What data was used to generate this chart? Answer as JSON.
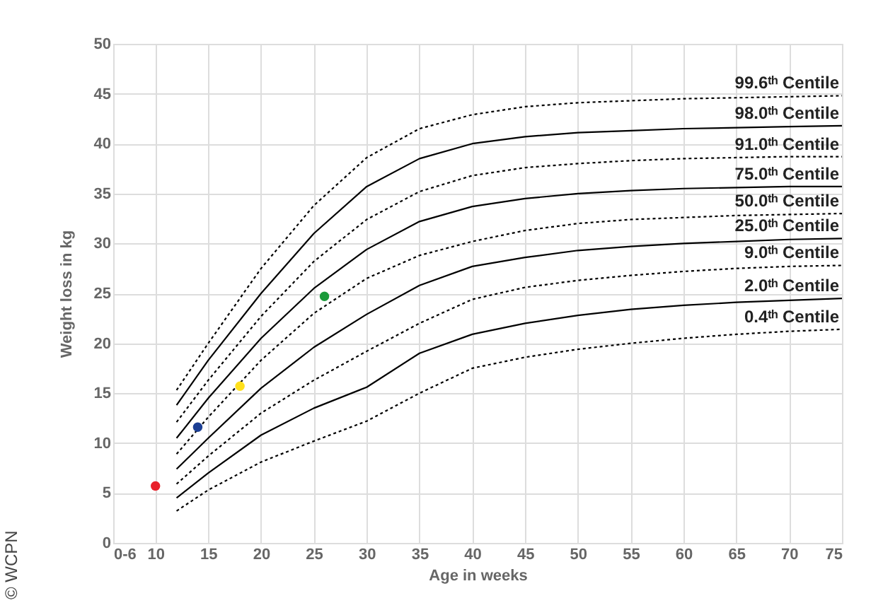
{
  "chart_data": {
    "type": "line",
    "xlabel": "Age in weeks",
    "ylabel": "Weight loss in kg",
    "xlim": [
      6,
      75
    ],
    "xticks": [
      {
        "value": 6,
        "label": "0-6"
      },
      10,
      15,
      20,
      25,
      30,
      35,
      40,
      45,
      50,
      55,
      60,
      65,
      70,
      75
    ],
    "ylim": [
      0,
      50
    ],
    "yticks": [
      0,
      5,
      10,
      15,
      20,
      25,
      30,
      35,
      40,
      45,
      50
    ],
    "grid": true,
    "legend": false,
    "x": [
      12,
      15,
      20,
      25,
      30,
      35,
      40,
      45,
      50,
      55,
      60,
      65,
      70,
      75
    ],
    "series": [
      {
        "name": "99.6ᵗʰ Centile",
        "color": "#000000",
        "line_style": "dotted",
        "values": [
          15.3,
          20.0,
          27.5,
          33.8,
          38.6,
          41.5,
          42.9,
          43.7,
          44.1,
          44.3,
          44.5,
          44.6,
          44.7,
          44.8
        ]
      },
      {
        "name": "98.0ᵗʰ Centile",
        "color": "#000000",
        "line_style": "solid",
        "values": [
          13.8,
          18.3,
          25.0,
          31.0,
          35.7,
          38.5,
          40.0,
          40.7,
          41.1,
          41.3,
          41.5,
          41.6,
          41.7,
          41.8
        ]
      },
      {
        "name": "91.0ᵗʰ Centile",
        "color": "#000000",
        "line_style": "dotted",
        "values": [
          12.1,
          16.3,
          22.7,
          28.2,
          32.4,
          35.2,
          36.8,
          37.6,
          38.0,
          38.3,
          38.5,
          38.6,
          38.7,
          38.7
        ]
      },
      {
        "name": "75.0ᵗʰ Centile",
        "color": "#000000",
        "line_style": "solid",
        "values": [
          10.5,
          14.5,
          20.5,
          25.5,
          29.4,
          32.2,
          33.7,
          34.5,
          35.0,
          35.3,
          35.5,
          35.6,
          35.7,
          35.7
        ]
      },
      {
        "name": "50.0ᵗʰ Centile",
        "color": "#000000",
        "line_style": "dotted",
        "values": [
          8.9,
          12.6,
          18.3,
          23.0,
          26.5,
          28.8,
          30.2,
          31.3,
          32.0,
          32.4,
          32.6,
          32.8,
          32.9,
          33.0
        ]
      },
      {
        "name": "25.0ᵗʰ Centile",
        "color": "#000000",
        "line_style": "solid",
        "values": [
          7.4,
          10.5,
          15.5,
          19.6,
          22.9,
          25.8,
          27.7,
          28.6,
          29.3,
          29.7,
          30.0,
          30.2,
          30.4,
          30.5
        ]
      },
      {
        "name": "9.0ᵗʰ Centile",
        "color": "#000000",
        "line_style": "dotted",
        "values": [
          5.9,
          8.7,
          13.0,
          16.3,
          19.2,
          22.0,
          24.4,
          25.6,
          26.3,
          26.8,
          27.2,
          27.5,
          27.7,
          27.8
        ]
      },
      {
        "name": "2.0ᵗʰ Centile",
        "color": "#000000",
        "line_style": "solid",
        "values": [
          4.5,
          7.0,
          10.8,
          13.5,
          15.6,
          19.0,
          20.9,
          22.0,
          22.8,
          23.4,
          23.8,
          24.1,
          24.3,
          24.5
        ]
      },
      {
        "name": "0.4ᵗʰ Centile",
        "color": "#000000",
        "line_style": "dotted",
        "values": [
          3.2,
          5.3,
          8.1,
          10.2,
          12.2,
          15.0,
          17.5,
          18.6,
          19.4,
          20.0,
          20.5,
          20.9,
          21.2,
          21.4
        ]
      },
      {
        "type": "scatter",
        "marker": "circle",
        "x": [
          10,
          14,
          18,
          26
        ],
        "values": [
          5.7,
          11.6,
          15.7,
          24.7
        ],
        "colors": [
          "#e8202a",
          "#1c3f94",
          "#ffe01b",
          "#1a9a3a"
        ]
      }
    ],
    "annotations": [
      "© WCPN"
    ]
  }
}
